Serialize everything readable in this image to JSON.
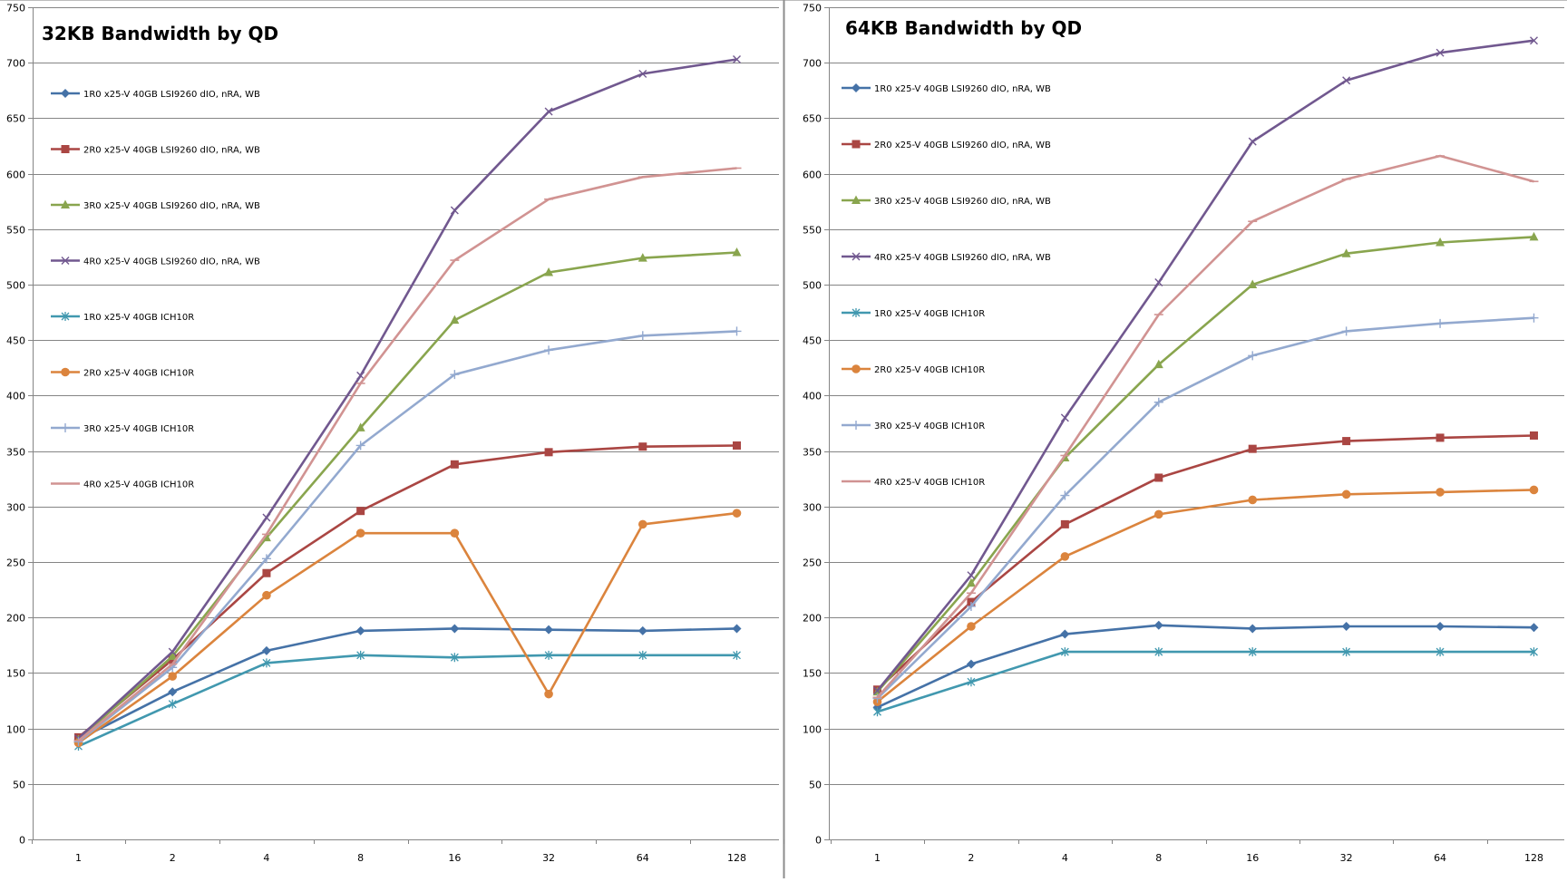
{
  "chart_data": [
    {
      "type": "line",
      "title": "32KB Bandwidth by QD",
      "categories": [
        "1",
        "2",
        "4",
        "8",
        "16",
        "32",
        "64",
        "128"
      ],
      "ylim": [
        0,
        750
      ],
      "yticks": [
        "0",
        "50",
        "100",
        "150",
        "200",
        "250",
        "300",
        "350",
        "400",
        "450",
        "500",
        "550",
        "600",
        "650",
        "700",
        "750"
      ],
      "grid": "horizontal",
      "legend_position": "top-left",
      "series": [
        {
          "name": "1R0 x25-V 40GB LSI9260 dIO, nRA, WB",
          "color": "#4572A7",
          "marker": "diamond",
          "values": [
            90,
            133,
            170,
            188,
            190,
            189,
            188,
            190
          ]
        },
        {
          "name": "2R0 x25-V 40GB LSI9260 dIO, nRA, WB",
          "color": "#AA4643",
          "marker": "square",
          "values": [
            92,
            162,
            240,
            296,
            338,
            349,
            354,
            355
          ]
        },
        {
          "name": "3R0 x25-V 40GB LSI9260 dIO, nRA, WB",
          "color": "#89A54E",
          "marker": "triangle",
          "values": [
            90,
            165,
            272,
            371,
            468,
            511,
            524,
            529
          ]
        },
        {
          "name": "4R0 x25-V 40GB LSI9260 dIO, nRA, WB",
          "color": "#71588F",
          "marker": "x",
          "values": [
            91,
            169,
            290,
            418,
            567,
            656,
            690,
            703
          ]
        },
        {
          "name": "1R0 x25-V 40GB ICH10R",
          "color": "#4198AF",
          "marker": "star",
          "values": [
            84,
            122,
            159,
            166,
            164,
            166,
            166,
            166
          ]
        },
        {
          "name": "2R0 x25-V 40GB ICH10R",
          "color": "#DB843D",
          "marker": "circle",
          "values": [
            87,
            147,
            220,
            276,
            276,
            131,
            284,
            294
          ]
        },
        {
          "name": "3R0 x25-V 40GB ICH10R",
          "color": "#93A9CF",
          "marker": "plus",
          "values": [
            88,
            155,
            253,
            355,
            419,
            441,
            454,
            458
          ]
        },
        {
          "name": "4R0 x25-V 40GB ICH10R",
          "color": "#D19392",
          "marker": "dash",
          "values": [
            89,
            158,
            275,
            411,
            522,
            577,
            597,
            605
          ]
        }
      ]
    },
    {
      "type": "line",
      "title": "64KB Bandwidth by QD",
      "categories": [
        "1",
        "2",
        "4",
        "8",
        "16",
        "32",
        "64",
        "128"
      ],
      "ylim": [
        0,
        750
      ],
      "yticks": [
        "0",
        "50",
        "100",
        "150",
        "200",
        "250",
        "300",
        "350",
        "400",
        "450",
        "500",
        "550",
        "600",
        "650",
        "700",
        "750"
      ],
      "grid": "horizontal",
      "legend_position": "top-left",
      "series": [
        {
          "name": "1R0 x25-V 40GB LSI9260 dIO, nRA, WB",
          "color": "#4572A7",
          "marker": "diamond",
          "values": [
            119,
            158,
            185,
            193,
            190,
            192,
            192,
            191
          ]
        },
        {
          "name": "2R0 x25-V 40GB LSI9260 dIO, nRA, WB",
          "color": "#AA4643",
          "marker": "square",
          "values": [
            135,
            214,
            284,
            326,
            352,
            359,
            362,
            364
          ]
        },
        {
          "name": "3R0 x25-V 40GB LSI9260 dIO, nRA, WB",
          "color": "#89A54E",
          "marker": "triangle",
          "values": [
            133,
            231,
            344,
            428,
            500,
            528,
            538,
            543
          ]
        },
        {
          "name": "4R0 x25-V 40GB LSI9260 dIO, nRA, WB",
          "color": "#71588F",
          "marker": "x",
          "values": [
            134,
            238,
            380,
            502,
            629,
            684,
            709,
            720
          ]
        },
        {
          "name": "1R0 x25-V 40GB ICH10R",
          "color": "#4198AF",
          "marker": "star",
          "values": [
            115,
            142,
            169,
            169,
            169,
            169,
            169,
            169
          ]
        },
        {
          "name": "2R0 x25-V 40GB ICH10R",
          "color": "#DB843D",
          "marker": "circle",
          "values": [
            124,
            192,
            255,
            293,
            306,
            311,
            313,
            315
          ]
        },
        {
          "name": "3R0 x25-V 40GB ICH10R",
          "color": "#93A9CF",
          "marker": "plus",
          "values": [
            127,
            210,
            310,
            394,
            436,
            458,
            465,
            470
          ]
        },
        {
          "name": "4R0 x25-V 40GB ICH10R",
          "color": "#D19392",
          "marker": "dash",
          "values": [
            128,
            222,
            346,
            473,
            557,
            595,
            616,
            593
          ]
        }
      ]
    }
  ]
}
